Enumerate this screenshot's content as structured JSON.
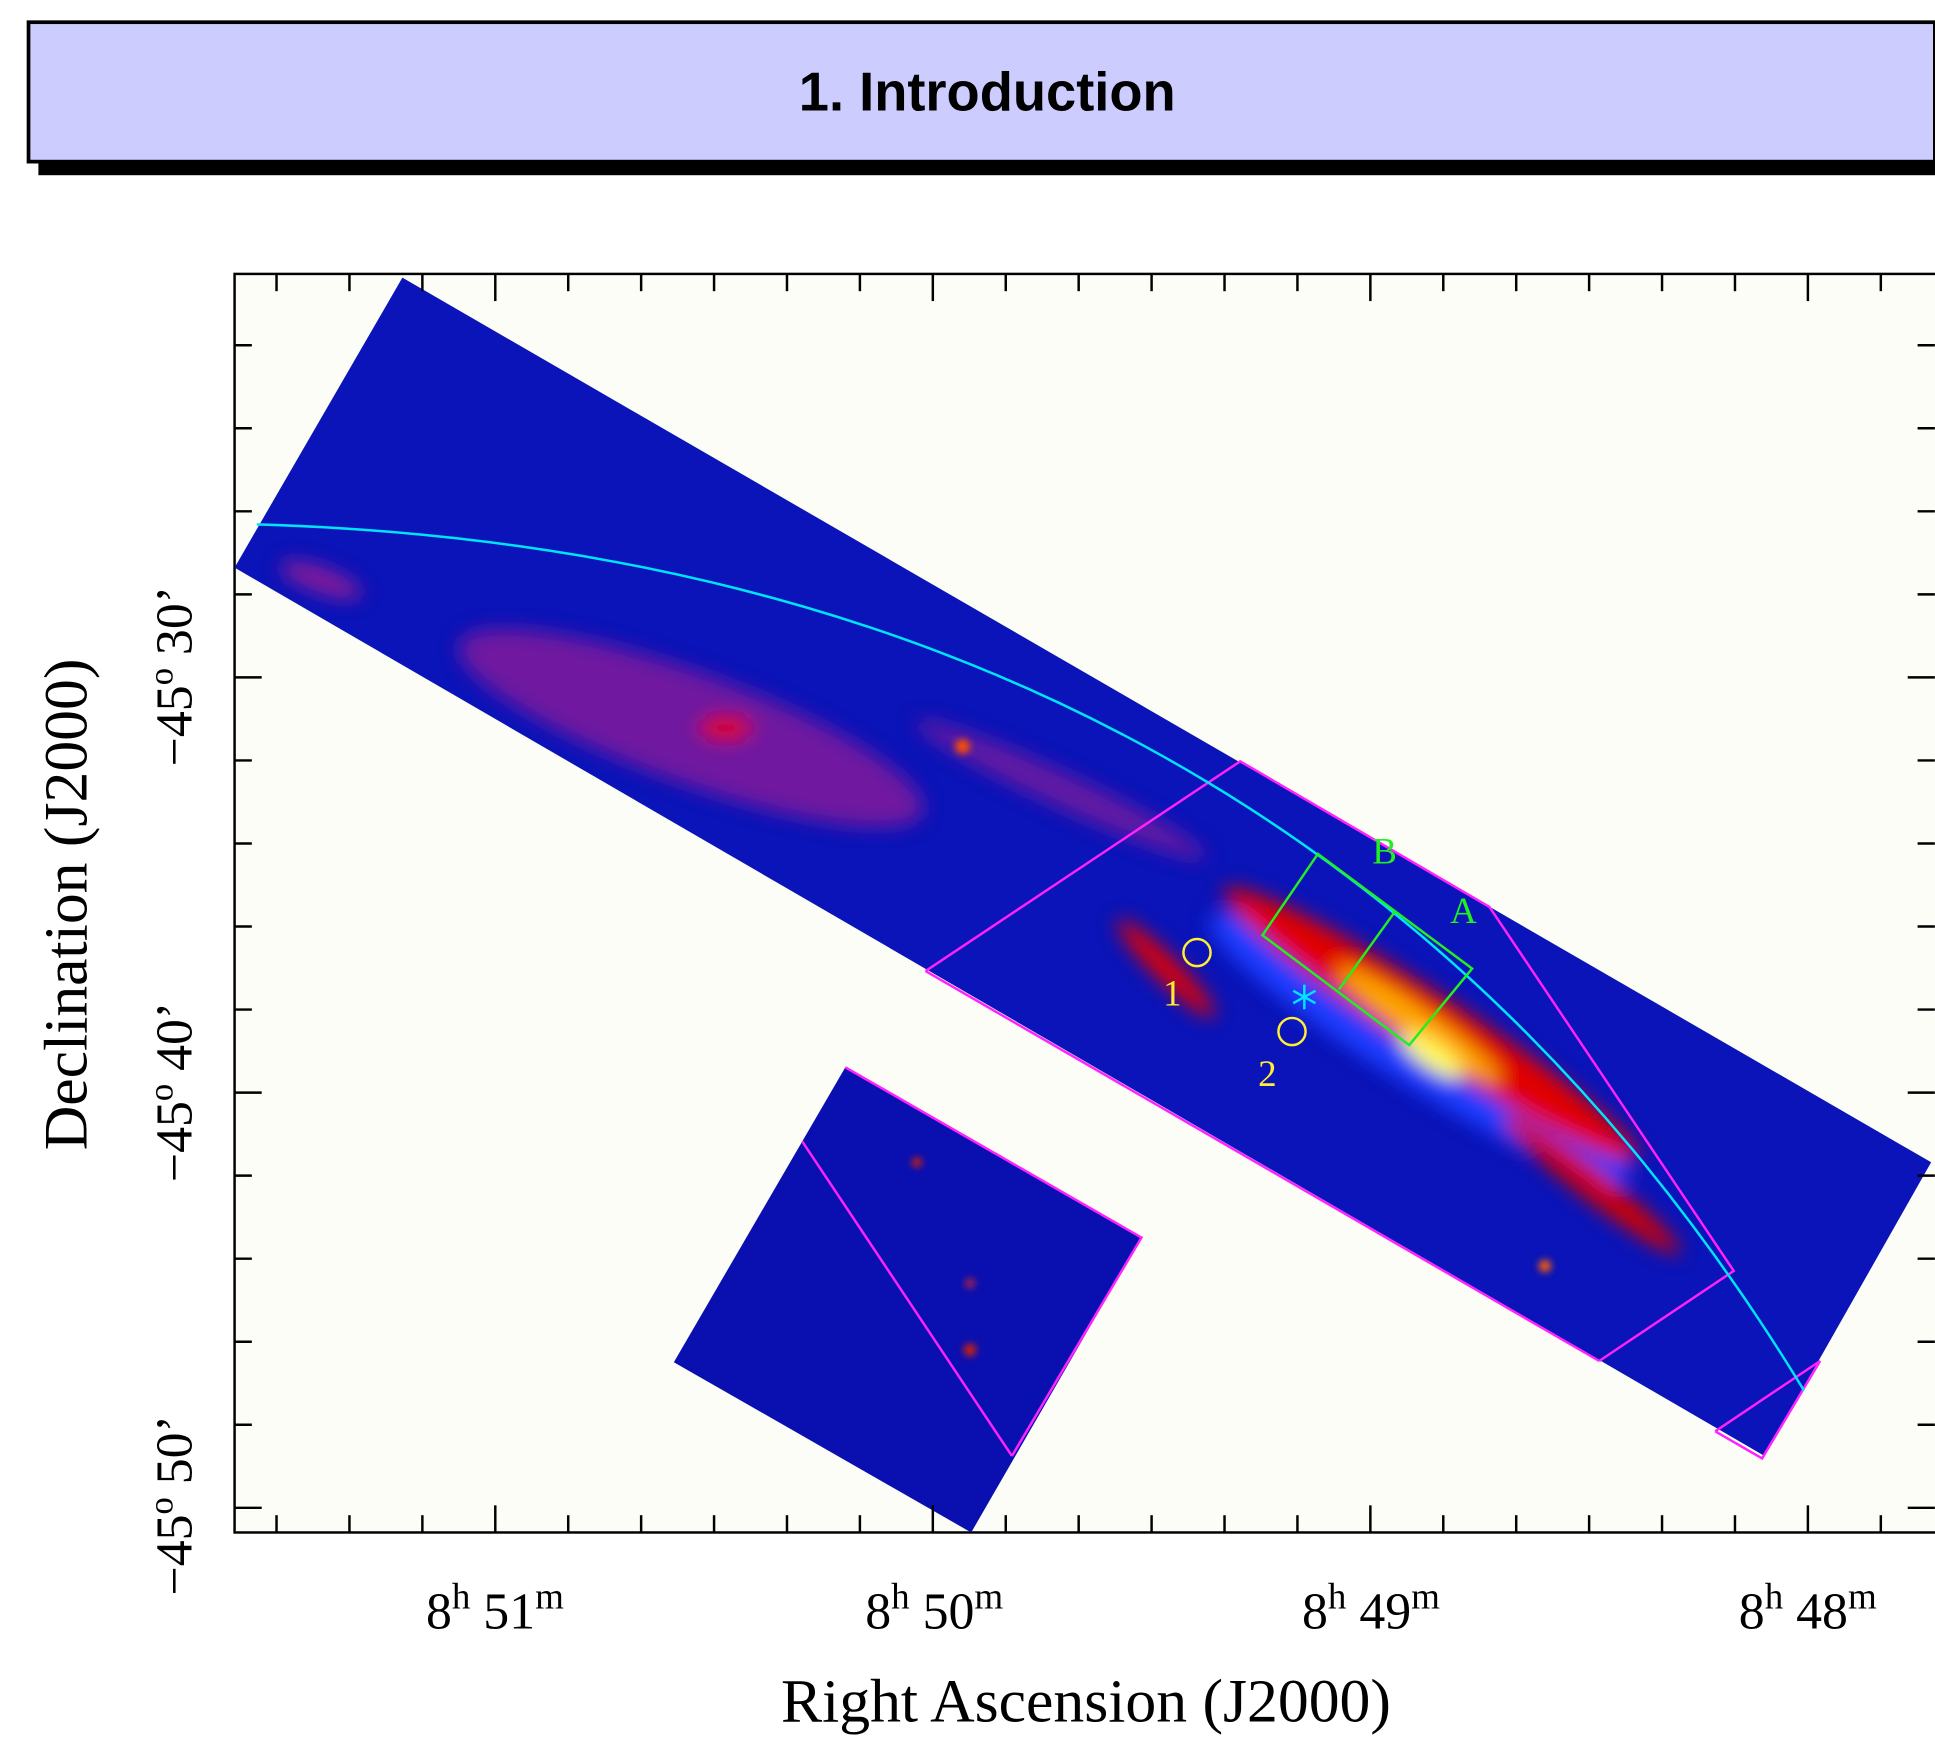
{
  "header": {
    "title": "1. Introduction"
  },
  "figure": {
    "x_axis_label": "Right Ascension (J2000)",
    "y_axis_label": "Declination (J2000)",
    "x_tick_labels": [
      [
        "8",
        "h",
        " 51",
        "m"
      ],
      [
        "8",
        "h",
        " 50",
        "m"
      ],
      [
        "8",
        "h",
        " 49",
        "m"
      ],
      [
        "8",
        "h",
        " 48",
        "m"
      ]
    ],
    "y_tick_labels": [
      [
        "−45",
        "o",
        " 30’"
      ],
      [
        "−45",
        "o",
        " 40’"
      ],
      [
        "−45",
        "o",
        " 50’"
      ]
    ],
    "annotations": [
      "B",
      "A",
      "1",
      "2"
    ]
  }
}
